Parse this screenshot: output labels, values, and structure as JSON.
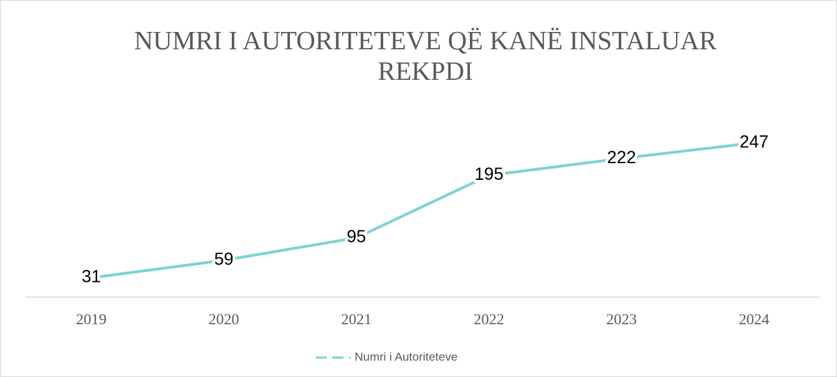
{
  "chart_data": {
    "type": "line",
    "title": "NUMRI I AUTORITETEVE QË KANË INSTALUAR REKPDI",
    "categories": [
      "2019",
      "2020",
      "2021",
      "2022",
      "2023",
      "2024"
    ],
    "series": [
      {
        "name": "Numri i Autoriteteve",
        "color": "#7dd3d3",
        "values": [
          31,
          59,
          95,
          195,
          222,
          247
        ]
      }
    ],
    "ylim": [
      0,
      300
    ],
    "grid": false,
    "legend": "bottom"
  }
}
